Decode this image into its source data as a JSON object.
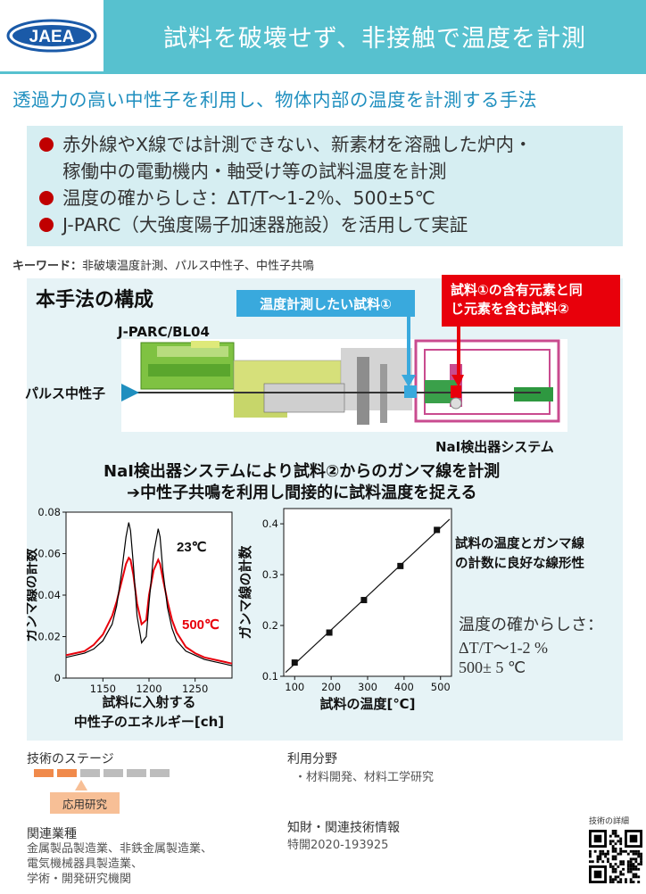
{
  "header": {
    "logo_text": "JAEA",
    "title": "試料を破壊せず、非接触で温度を計測",
    "subtitle": "透過力の高い中性子を利用し、物体内部の温度を計測する手法"
  },
  "bullets": [
    "赤外線やX線では計測できない、新素材を溶融した炉内・",
    "稼働中の電動機内・軸受け等の試料温度を計測",
    "温度の確からしさ：ΔT/T〜1-2％、500±5℃",
    "J-PARC（大強度陽子加速器施設）を活用して実証"
  ],
  "keywords": {
    "label": "キーワード：",
    "text": "非破壊温度計測、パルス中性子、中性子共鳴"
  },
  "figure": {
    "section_title": "本手法の構成",
    "callout_sample1": "温度計測したい試料①",
    "callout_sample2_line1": "試料①の含有元素と同",
    "callout_sample2_line2": "じ元素を含む試料②",
    "beamline": "J-PARC/BL04",
    "pulse_neutron": "パルス中性子",
    "detector": "NaI検出器システム",
    "message1": "NaI検出器システムにより試料②からのガンマ線を計測",
    "message2": "➔中性子共鳴を利用し間接的に試料温度を捉える",
    "linearity_note1": "試料の温度とガンマ線",
    "linearity_note2": "の計数に良好な線形性",
    "accuracy1": "温度の確からしさ：",
    "accuracy2": "ΔT/T〜1-2 %",
    "accuracy3": "500± 5 ℃"
  },
  "colors": {
    "accent": "#57c1cf",
    "red": "#e8000b",
    "blue": "#39a9dd",
    "stage": "#f08a4b"
  },
  "chart_data": [
    {
      "type": "line",
      "xlabel": "試料に入射する中性子のエネルギー[ch]",
      "xlabel_line1": "試料に入射する",
      "xlabel_line2": "中性子のエネルギー[ch]",
      "ylabel": "ガンマ線の計数",
      "xlim": [
        1110,
        1290
      ],
      "ylim": [
        0,
        0.08
      ],
      "xticks": [
        "1150",
        "1200",
        "1250"
      ],
      "yticks": [
        "0",
        "0.02",
        "0.04",
        "0.06",
        "0.08"
      ],
      "series": [
        {
          "name": "23℃",
          "color": "#000000",
          "x": [
            1110,
            1120,
            1130,
            1140,
            1150,
            1160,
            1165,
            1170,
            1175,
            1178,
            1180,
            1183,
            1187,
            1192,
            1197,
            1200,
            1205,
            1210,
            1212,
            1215,
            1220,
            1225,
            1230,
            1240,
            1250,
            1260,
            1270,
            1280,
            1290
          ],
          "y": [
            0.01,
            0.011,
            0.012,
            0.014,
            0.018,
            0.026,
            0.035,
            0.05,
            0.068,
            0.075,
            0.071,
            0.055,
            0.03,
            0.017,
            0.02,
            0.036,
            0.06,
            0.072,
            0.068,
            0.052,
            0.034,
            0.024,
            0.018,
            0.013,
            0.011,
            0.009,
            0.008,
            0.007,
            0.006
          ]
        },
        {
          "name": "500℃",
          "color": "#e8000b",
          "x": [
            1110,
            1120,
            1130,
            1140,
            1150,
            1160,
            1165,
            1170,
            1175,
            1178,
            1180,
            1183,
            1187,
            1192,
            1197,
            1200,
            1205,
            1210,
            1212,
            1215,
            1220,
            1225,
            1230,
            1240,
            1250,
            1260,
            1270,
            1280,
            1290
          ],
          "y": [
            0.011,
            0.012,
            0.013,
            0.016,
            0.021,
            0.03,
            0.037,
            0.046,
            0.055,
            0.058,
            0.057,
            0.05,
            0.036,
            0.026,
            0.028,
            0.04,
            0.052,
            0.057,
            0.055,
            0.048,
            0.037,
            0.028,
            0.022,
            0.015,
            0.012,
            0.01,
            0.009,
            0.008,
            0.007
          ]
        }
      ]
    },
    {
      "type": "scatter",
      "xlabel": "試料の温度[℃]",
      "ylabel": "ガンマ線の計数",
      "xlim": [
        70,
        530
      ],
      "ylim": [
        0.1,
        0.43
      ],
      "xticks": [
        "100",
        "200",
        "300",
        "400",
        "500"
      ],
      "yticks": [
        "0.1",
        "0.2",
        "0.3",
        "0.4"
      ],
      "x": [
        100,
        195,
        290,
        390,
        490
      ],
      "y": [
        0.127,
        0.186,
        0.25,
        0.317,
        0.388
      ]
    }
  ],
  "footer": {
    "stage_title": "技術のステージ",
    "stage_label": "応用研究",
    "stage_level": 2,
    "stage_total": 6,
    "related_title": "関連業種",
    "related_lines": [
      "金属製品製造業、非鉄金属製造業、",
      "電気機械器具製造業、",
      "学術・開発研究機関"
    ],
    "use_title": "利用分野",
    "use_body": "・材料開発、材料工学研究",
    "ip_title": "知財・関連技術情報",
    "ip_body": "特開2020-193925",
    "qr_label": "技術の詳細"
  }
}
